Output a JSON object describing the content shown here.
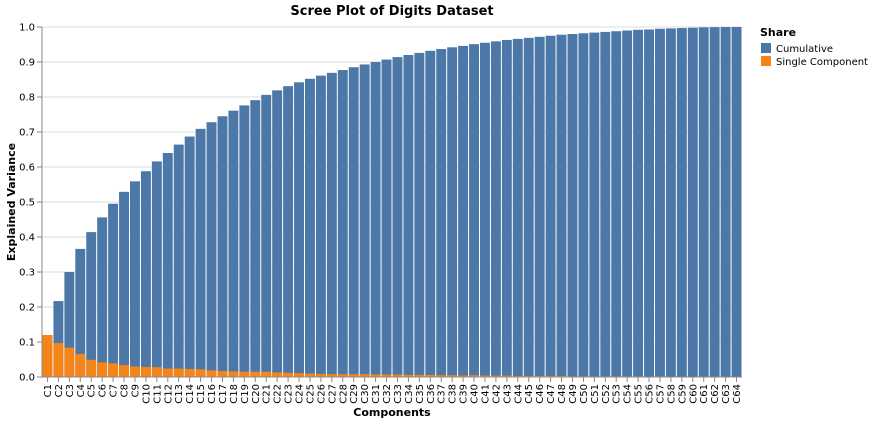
{
  "chart_data": {
    "type": "bar",
    "title": "Scree Plot of Digits Dataset",
    "xlabel": "Components",
    "ylabel": "Explained Variance",
    "ylim": [
      0,
      1.0
    ],
    "yticks": [
      "0.0",
      "0.1",
      "0.2",
      "0.3",
      "0.4",
      "0.5",
      "0.6",
      "0.7",
      "0.8",
      "0.9",
      "1.0"
    ],
    "grid": true,
    "legend_title": "Share",
    "legend_position": "top-right",
    "categories": [
      "C1",
      "C2",
      "C3",
      "C4",
      "C5",
      "C6",
      "C7",
      "C8",
      "C9",
      "C10",
      "C11",
      "C12",
      "C13",
      "C14",
      "C15",
      "C16",
      "C17",
      "C18",
      "C19",
      "C20",
      "C21",
      "C22",
      "C23",
      "C24",
      "C25",
      "C26",
      "C27",
      "C28",
      "C29",
      "C30",
      "C31",
      "C32",
      "C33",
      "C34",
      "C35",
      "C36",
      "C37",
      "C38",
      "C39",
      "C40",
      "C41",
      "C42",
      "C43",
      "C44",
      "C45",
      "C46",
      "C47",
      "C48",
      "C49",
      "C50",
      "C51",
      "C52",
      "C53",
      "C54",
      "C55",
      "C56",
      "C57",
      "C58",
      "C59",
      "C60",
      "C61",
      "C62",
      "C63",
      "C64"
    ],
    "series": [
      {
        "name": "Cumulative",
        "color": "#4c78a8",
        "values": [
          0.12,
          0.217,
          0.3,
          0.366,
          0.414,
          0.456,
          0.495,
          0.529,
          0.559,
          0.588,
          0.616,
          0.64,
          0.664,
          0.687,
          0.709,
          0.728,
          0.745,
          0.761,
          0.776,
          0.791,
          0.806,
          0.819,
          0.831,
          0.842,
          0.852,
          0.861,
          0.869,
          0.877,
          0.885,
          0.893,
          0.9,
          0.907,
          0.914,
          0.92,
          0.926,
          0.932,
          0.937,
          0.942,
          0.946,
          0.951,
          0.955,
          0.959,
          0.963,
          0.966,
          0.969,
          0.972,
          0.975,
          0.978,
          0.98,
          0.982,
          0.984,
          0.986,
          0.988,
          0.99,
          0.992,
          0.993,
          0.995,
          0.996,
          0.997,
          0.998,
          0.999,
          0.9995,
          1.0,
          1.0
        ]
      },
      {
        "name": "Single Component",
        "color": "#f58518",
        "values": [
          0.12,
          0.097,
          0.084,
          0.066,
          0.049,
          0.042,
          0.039,
          0.034,
          0.03,
          0.029,
          0.028,
          0.024,
          0.024,
          0.023,
          0.022,
          0.019,
          0.017,
          0.016,
          0.015,
          0.015,
          0.015,
          0.013,
          0.012,
          0.011,
          0.01,
          0.009,
          0.008,
          0.008,
          0.008,
          0.008,
          0.007,
          0.007,
          0.007,
          0.006,
          0.006,
          0.006,
          0.005,
          0.005,
          0.004,
          0.005,
          0.004,
          0.004,
          0.004,
          0.003,
          0.003,
          0.003,
          0.003,
          0.003,
          0.002,
          0.002,
          0.002,
          0.002,
          0.002,
          0.002,
          0.002,
          0.001,
          0.002,
          0.001,
          0.001,
          0.001,
          0.001,
          0.0005,
          0.0005,
          0.0
        ]
      }
    ]
  }
}
